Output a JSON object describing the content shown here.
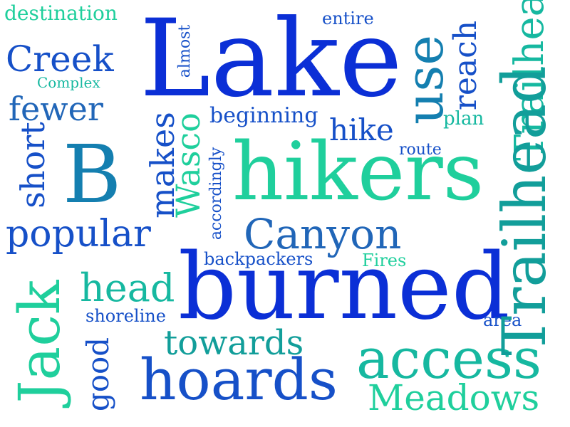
{
  "words": {
    "destination": "destination",
    "creek": "Creek",
    "complex": "Complex",
    "fewer": "fewer",
    "short": "short",
    "b": "B",
    "popular": "popular",
    "jack": "Jack",
    "good": "good",
    "almost": "almost",
    "lake": "Lake",
    "entire": "entire",
    "use": "use",
    "reach": "reach",
    "trailhead_top": "Trailhead",
    "trailhead_right": "Trailhead",
    "makes": "makes",
    "wasco": "Wasco",
    "accordingly": "accordingly",
    "beginning": "beginning",
    "hike": "hike",
    "plan": "plan",
    "route": "route",
    "hikers": "hikers",
    "canyon": "Canyon",
    "backpackers": "backpackers",
    "fires": "Fires",
    "head": "head",
    "burned": "burned",
    "shoreline": "shoreline",
    "area": "area",
    "towards": "towards",
    "access": "access",
    "hoards": "hoards",
    "meadows": "Meadows"
  },
  "colors": {
    "blue": "#0b2fd6",
    "royal": "#1650c8",
    "steel": "#2166b8",
    "teal": "#129e9a",
    "sea": "#16b8a0",
    "mint": "#1fcf9c",
    "ocean": "#147fb0"
  }
}
